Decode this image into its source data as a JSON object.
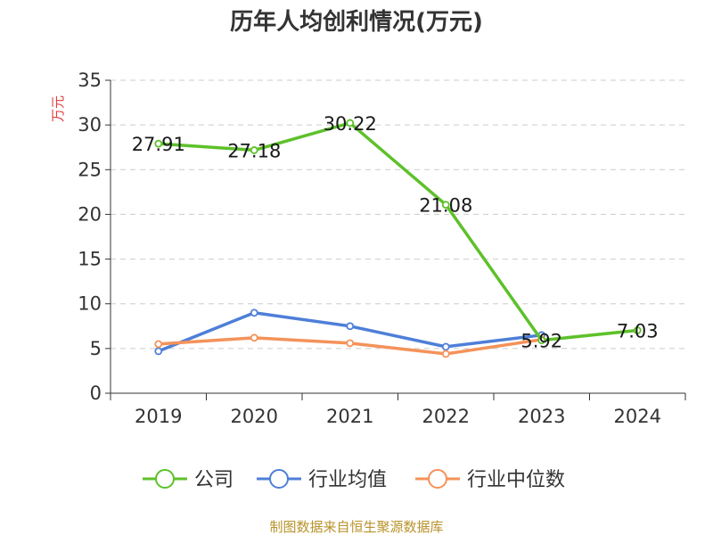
{
  "chart_data": {
    "type": "line",
    "title": "历年人均创利情况(万元)",
    "xlabel": "",
    "ylabel": "万元",
    "ylim": [
      0,
      35
    ],
    "yticks": [
      0,
      5,
      10,
      15,
      20,
      25,
      30,
      35
    ],
    "categories": [
      "2019",
      "2020",
      "2021",
      "2022",
      "2023",
      "2024"
    ],
    "series": [
      {
        "name": "公司",
        "color": "#5dc12a",
        "values": [
          27.91,
          27.18,
          30.22,
          21.08,
          5.92,
          7.03
        ],
        "labels": [
          "27.91",
          "27.18",
          "30.22",
          "21.08",
          "5.92",
          "7.03"
        ]
      },
      {
        "name": "行业均值",
        "color": "#4e7fd8",
        "values": [
          4.7,
          9.0,
          7.5,
          5.2,
          6.5,
          null
        ]
      },
      {
        "name": "行业中位数",
        "color": "#f4925a",
        "values": [
          5.5,
          6.2,
          5.6,
          4.4,
          6.0,
          null
        ]
      }
    ],
    "grid": true,
    "legend_position": "bottom",
    "source": "制图数据来自恒生聚源数据库"
  }
}
